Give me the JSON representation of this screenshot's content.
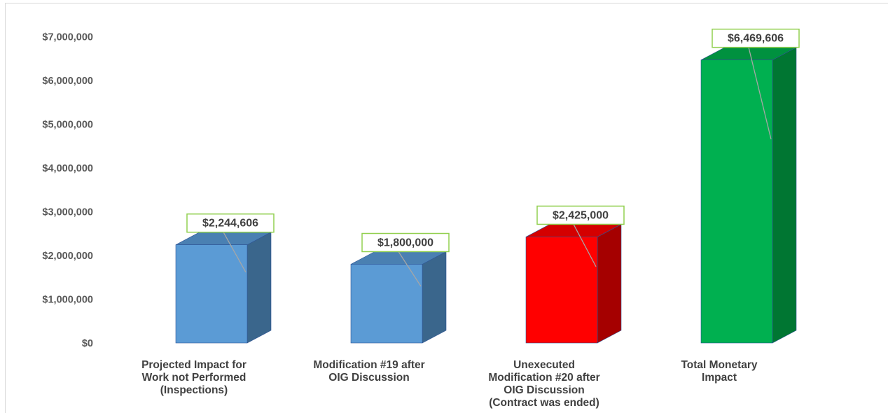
{
  "chart_data": {
    "type": "bar",
    "style": "3d-column",
    "title": "",
    "xlabel": "",
    "ylabel": "",
    "ylim": [
      0,
      7000000
    ],
    "y_ticks": [
      0,
      1000000,
      2000000,
      3000000,
      4000000,
      5000000,
      6000000,
      7000000
    ],
    "y_tick_labels": [
      "$0",
      "$1,000,000",
      "$2,000,000",
      "$3,000,000",
      "$4,000,000",
      "$5,000,000",
      "$6,000,000",
      "$7,000,000"
    ],
    "grid": false,
    "categories": [
      [
        "Projected Impact for",
        "Work not Performed",
        "(Inspections)"
      ],
      [
        "Modification #19 after",
        "OIG Discussion"
      ],
      [
        "Unexecuted",
        "Modification #20 after",
        "OIG Discussion",
        "(Contract was ended)"
      ],
      [
        "Total Monetary",
        "Impact"
      ]
    ],
    "values": [
      2244606,
      1800000,
      2425000,
      6469606
    ],
    "data_labels": [
      "$2,244,606",
      "$1,800,000",
      "$2,425,000",
      "$6,469,606"
    ],
    "colors": {
      "front": [
        "#5b9bd5",
        "#5b9bd5",
        "#ff0000",
        "#00b050"
      ],
      "side": [
        "#3a668c",
        "#3a668c",
        "#a50000",
        "#007632"
      ],
      "top": [
        "#4a80b2",
        "#4a80b2",
        "#d40000",
        "#00913f"
      ],
      "label_border": "#92d050",
      "leader": "#a6a6a6"
    }
  }
}
